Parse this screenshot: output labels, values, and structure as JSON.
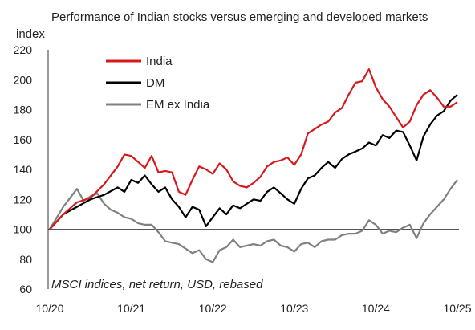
{
  "chart_data": {
    "type": "line",
    "title": "Performance of Indian stocks versus emerging and developed markets",
    "ylabel": "index",
    "xlabel": "",
    "annotation": "MSCI indices, net return, USD, rebased",
    "ylim": [
      60,
      220
    ],
    "yticks": [
      60,
      80,
      100,
      120,
      140,
      160,
      180,
      200,
      220
    ],
    "xlim": [
      "2020-10",
      "2025-10"
    ],
    "xticks": [
      "10/20",
      "10/21",
      "10/22",
      "10/23",
      "10/24",
      "10/25"
    ],
    "baseline": 100,
    "legend_position": "top-left",
    "series": [
      {
        "name": "India",
        "color": "#d7191c",
        "points": [
          [
            "2020-10",
            100
          ],
          [
            "2020-12",
            110
          ],
          [
            "2021-02",
            118
          ],
          [
            "2021-04",
            121
          ],
          [
            "2021-06",
            130
          ],
          [
            "2021-08",
            142
          ],
          [
            "2021-09",
            150
          ],
          [
            "2021-10",
            149
          ],
          [
            "2021-11",
            145
          ],
          [
            "2021-12",
            141
          ],
          [
            "2022-01",
            149
          ],
          [
            "2022-02",
            138
          ],
          [
            "2022-03",
            139
          ],
          [
            "2022-04",
            138
          ],
          [
            "2022-05",
            125
          ],
          [
            "2022-06",
            123
          ],
          [
            "2022-07",
            133
          ],
          [
            "2022-08",
            142
          ],
          [
            "2022-09",
            140
          ],
          [
            "2022-10",
            137
          ],
          [
            "2022-11",
            144
          ],
          [
            "2022-12",
            140
          ],
          [
            "2023-01",
            132
          ],
          [
            "2023-02",
            129
          ],
          [
            "2023-03",
            128
          ],
          [
            "2023-04",
            131
          ],
          [
            "2023-05",
            135
          ],
          [
            "2023-06",
            142
          ],
          [
            "2023-07",
            145
          ],
          [
            "2023-08",
            146
          ],
          [
            "2023-09",
            148
          ],
          [
            "2023-10",
            143
          ],
          [
            "2023-11",
            150
          ],
          [
            "2023-12",
            164
          ],
          [
            "2024-01",
            167
          ],
          [
            "2024-02",
            170
          ],
          [
            "2024-03",
            172
          ],
          [
            "2024-04",
            178
          ],
          [
            "2024-05",
            181
          ],
          [
            "2024-06",
            190
          ],
          [
            "2024-07",
            198
          ],
          [
            "2024-08",
            199
          ],
          [
            "2024-09",
            207
          ],
          [
            "2024-10",
            195
          ],
          [
            "2024-11",
            187
          ],
          [
            "2024-12",
            182
          ],
          [
            "2025-01",
            175
          ],
          [
            "2025-02",
            168
          ],
          [
            "2025-03",
            172
          ],
          [
            "2025-04",
            183
          ],
          [
            "2025-05",
            190
          ],
          [
            "2025-06",
            193
          ],
          [
            "2025-07",
            188
          ],
          [
            "2025-08",
            182
          ],
          [
            "2025-09",
            182
          ],
          [
            "2025-10",
            185
          ]
        ]
      },
      {
        "name": "DM",
        "color": "#000000",
        "points": [
          [
            "2020-10",
            100
          ],
          [
            "2020-12",
            110
          ],
          [
            "2021-02",
            115
          ],
          [
            "2021-04",
            120
          ],
          [
            "2021-06",
            123
          ],
          [
            "2021-08",
            128
          ],
          [
            "2021-09",
            125
          ],
          [
            "2021-10",
            133
          ],
          [
            "2021-11",
            131
          ],
          [
            "2021-12",
            136
          ],
          [
            "2022-01",
            130
          ],
          [
            "2022-02",
            125
          ],
          [
            "2022-03",
            128
          ],
          [
            "2022-04",
            120
          ],
          [
            "2022-05",
            115
          ],
          [
            "2022-06",
            108
          ],
          [
            "2022-07",
            115
          ],
          [
            "2022-08",
            113
          ],
          [
            "2022-09",
            102
          ],
          [
            "2022-10",
            108
          ],
          [
            "2022-11",
            114
          ],
          [
            "2022-12",
            110
          ],
          [
            "2023-01",
            116
          ],
          [
            "2023-02",
            114
          ],
          [
            "2023-03",
            117
          ],
          [
            "2023-04",
            120
          ],
          [
            "2023-05",
            119
          ],
          [
            "2023-06",
            125
          ],
          [
            "2023-07",
            128
          ],
          [
            "2023-08",
            124
          ],
          [
            "2023-09",
            120
          ],
          [
            "2023-10",
            117
          ],
          [
            "2023-11",
            127
          ],
          [
            "2023-12",
            134
          ],
          [
            "2024-01",
            136
          ],
          [
            "2024-02",
            141
          ],
          [
            "2024-03",
            145
          ],
          [
            "2024-04",
            141
          ],
          [
            "2024-05",
            147
          ],
          [
            "2024-06",
            150
          ],
          [
            "2024-07",
            152
          ],
          [
            "2024-08",
            154
          ],
          [
            "2024-09",
            158
          ],
          [
            "2024-10",
            156
          ],
          [
            "2024-11",
            163
          ],
          [
            "2024-12",
            161
          ],
          [
            "2025-01",
            166
          ],
          [
            "2025-02",
            165
          ],
          [
            "2025-03",
            156
          ],
          [
            "2025-04",
            146
          ],
          [
            "2025-05",
            162
          ],
          [
            "2025-06",
            170
          ],
          [
            "2025-07",
            176
          ],
          [
            "2025-08",
            179
          ],
          [
            "2025-09",
            186
          ],
          [
            "2025-10",
            190
          ]
        ]
      },
      {
        "name": "EM ex India",
        "color": "#808080",
        "points": [
          [
            "2020-10",
            100
          ],
          [
            "2020-12",
            115
          ],
          [
            "2021-01",
            121
          ],
          [
            "2021-02",
            127
          ],
          [
            "2021-03",
            119
          ],
          [
            "2021-04",
            122
          ],
          [
            "2021-05",
            124
          ],
          [
            "2021-06",
            117
          ],
          [
            "2021-07",
            113
          ],
          [
            "2021-08",
            111
          ],
          [
            "2021-09",
            108
          ],
          [
            "2021-10",
            107
          ],
          [
            "2021-11",
            104
          ],
          [
            "2021-12",
            103
          ],
          [
            "2022-01",
            103
          ],
          [
            "2022-02",
            98
          ],
          [
            "2022-03",
            92
          ],
          [
            "2022-04",
            91
          ],
          [
            "2022-05",
            90
          ],
          [
            "2022-06",
            87
          ],
          [
            "2022-07",
            84
          ],
          [
            "2022-08",
            86
          ],
          [
            "2022-09",
            80
          ],
          [
            "2022-10",
            78
          ],
          [
            "2022-11",
            86
          ],
          [
            "2022-12",
            88
          ],
          [
            "2023-01",
            93
          ],
          [
            "2023-02",
            88
          ],
          [
            "2023-03",
            89
          ],
          [
            "2023-04",
            90
          ],
          [
            "2023-05",
            89
          ],
          [
            "2023-06",
            92
          ],
          [
            "2023-07",
            93
          ],
          [
            "2023-08",
            89
          ],
          [
            "2023-09",
            88
          ],
          [
            "2023-10",
            85
          ],
          [
            "2023-11",
            90
          ],
          [
            "2023-12",
            91
          ],
          [
            "2024-01",
            88
          ],
          [
            "2024-02",
            92
          ],
          [
            "2024-03",
            93
          ],
          [
            "2024-04",
            93
          ],
          [
            "2024-05",
            96
          ],
          [
            "2024-06",
            97
          ],
          [
            "2024-07",
            97
          ],
          [
            "2024-08",
            99
          ],
          [
            "2024-09",
            106
          ],
          [
            "2024-10",
            103
          ],
          [
            "2024-11",
            97
          ],
          [
            "2024-12",
            99
          ],
          [
            "2025-01",
            98
          ],
          [
            "2025-02",
            101
          ],
          [
            "2025-03",
            103
          ],
          [
            "2025-04",
            94
          ],
          [
            "2025-05",
            104
          ],
          [
            "2025-06",
            110
          ],
          [
            "2025-07",
            115
          ],
          [
            "2025-08",
            120
          ],
          [
            "2025-09",
            127
          ],
          [
            "2025-10",
            133
          ]
        ]
      }
    ]
  }
}
